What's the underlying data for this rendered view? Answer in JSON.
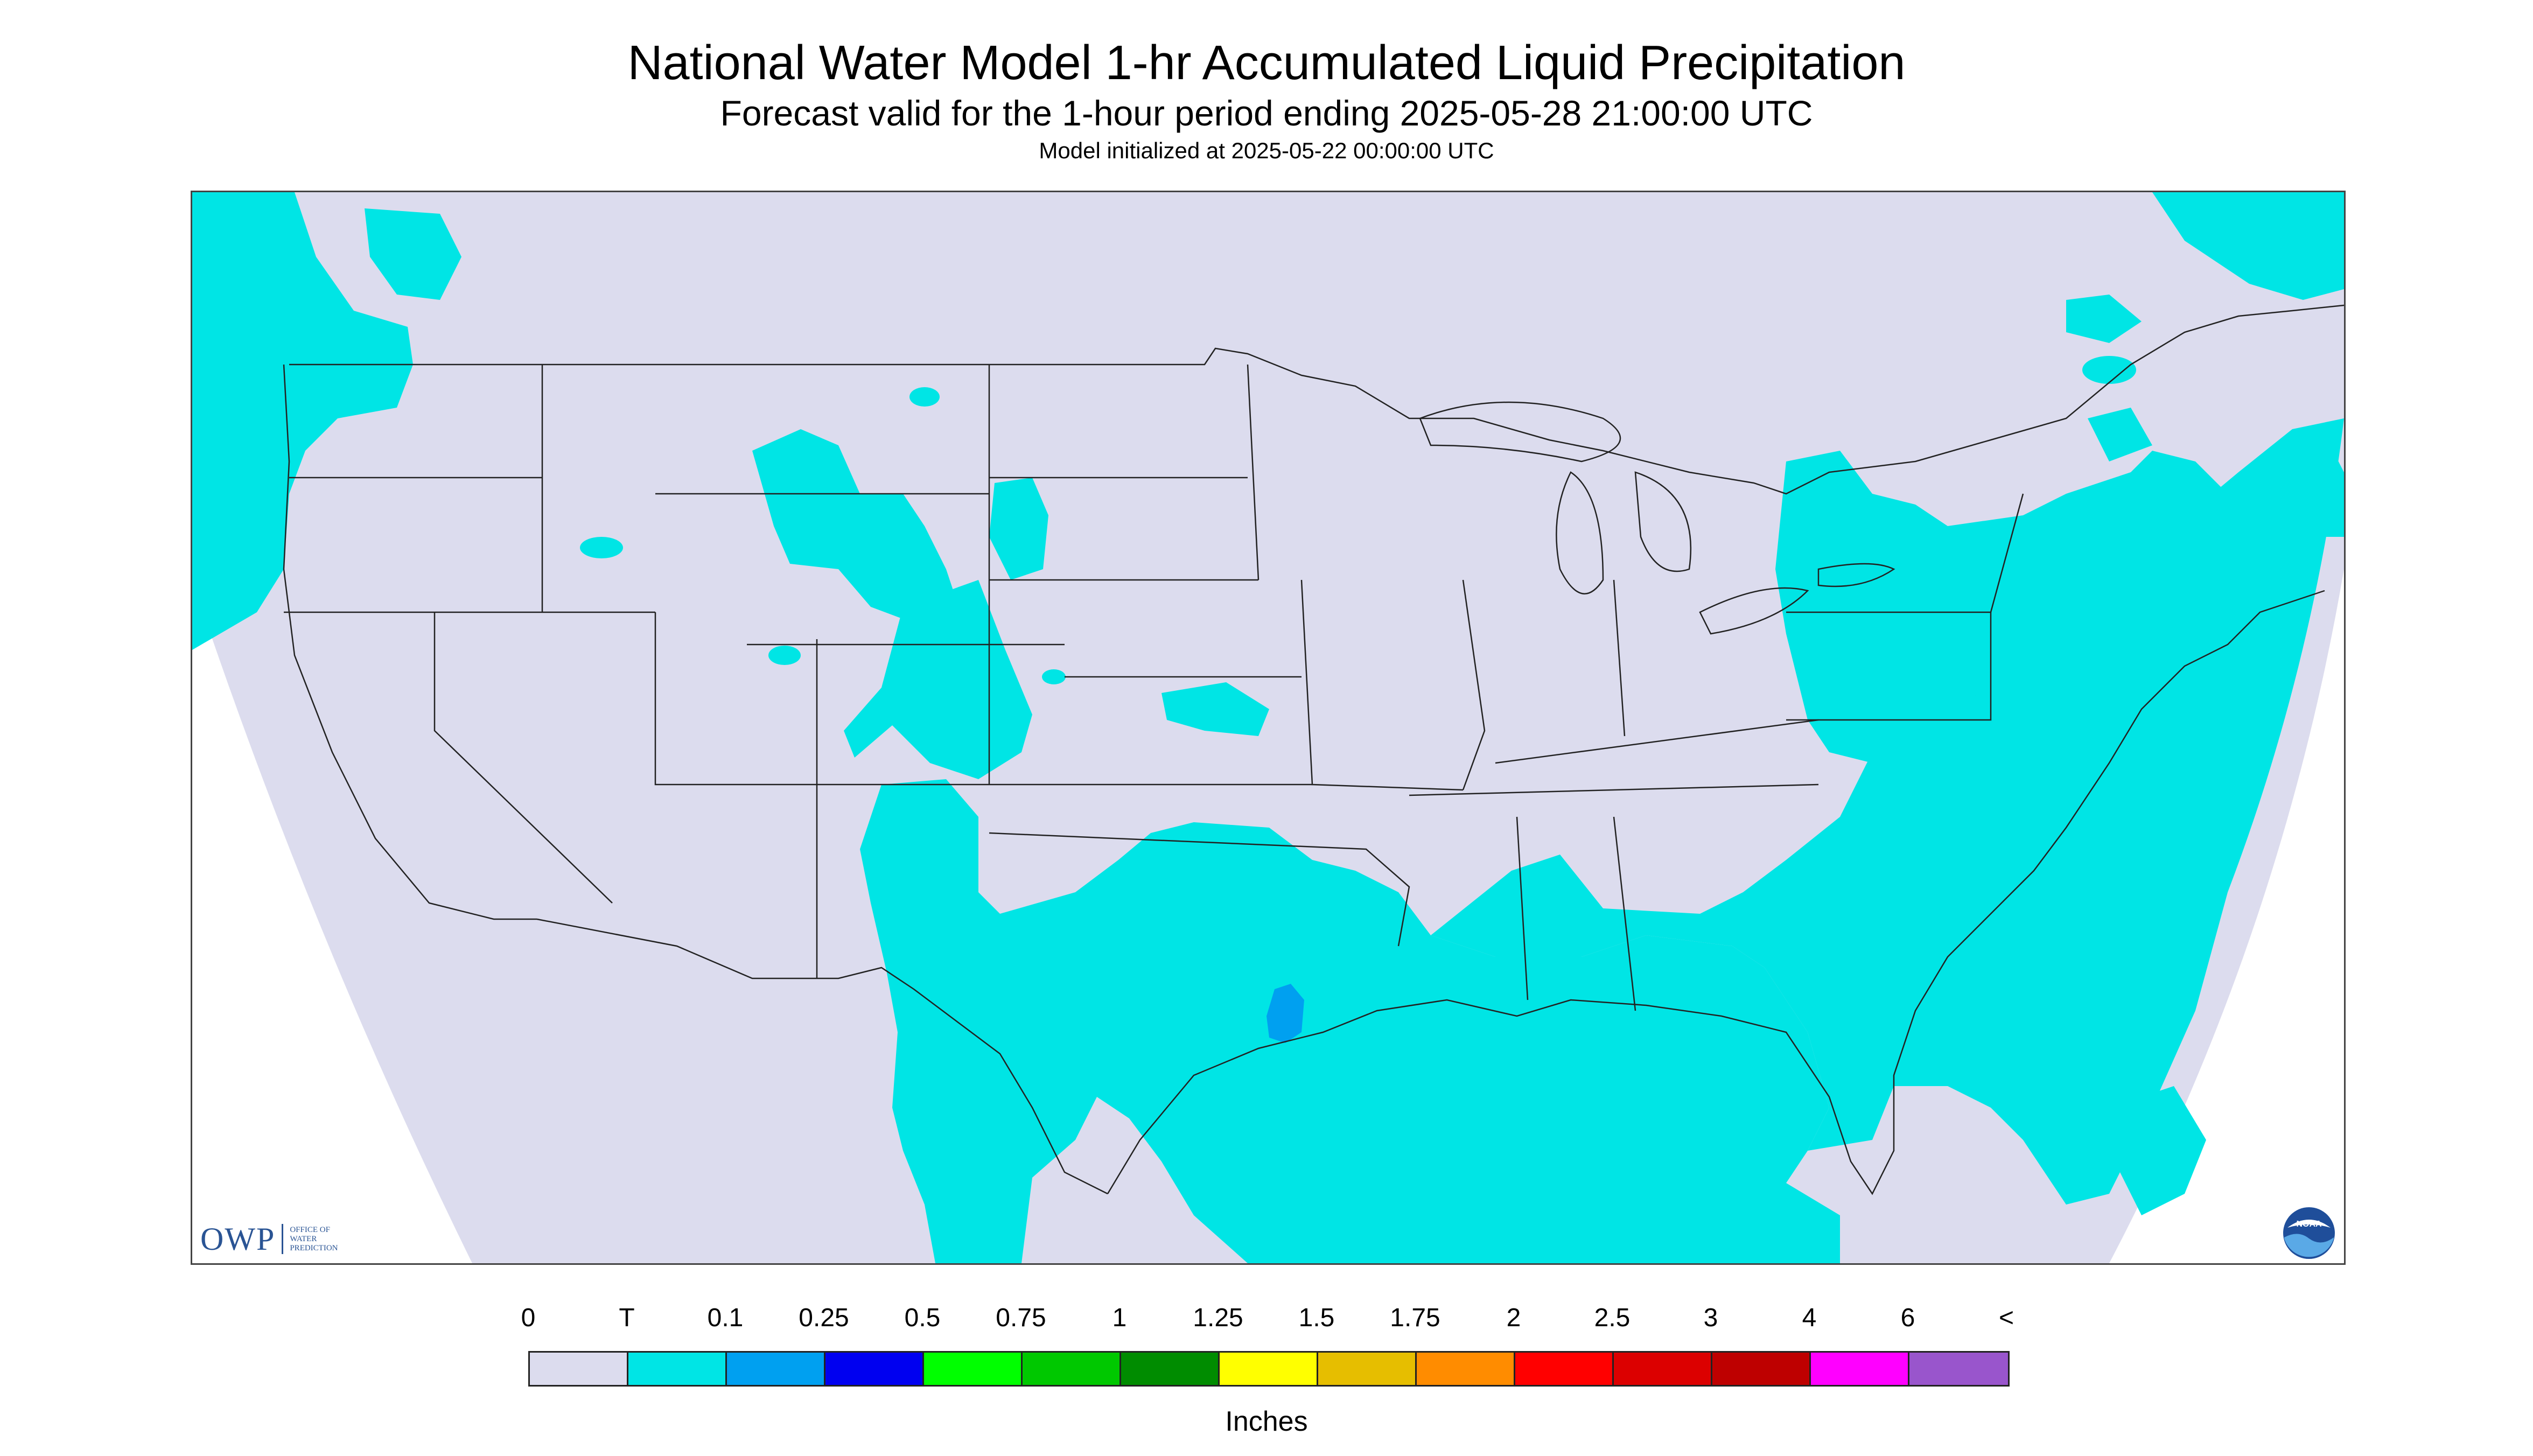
{
  "header": {
    "title": "National Water Model 1-hr Accumulated Liquid Precipitation",
    "subtitle": "Forecast valid for the 1-hour period ending 2025-05-28 21:00:00 UTC",
    "init": "Model initialized at 2025-05-22 00:00:00 UTC"
  },
  "map": {
    "background_color": "#dcdcee",
    "outside_color": "#ffffff",
    "trace_color": "#00e5e5",
    "light_color": "#00a0f0",
    "boundary_color": "#222222"
  },
  "logos": {
    "owp": {
      "letters": "OWP",
      "line1": "OFFICE OF",
      "line2": "WATER",
      "line3": "PREDICTION"
    },
    "noaa": {
      "text": "NOAA"
    }
  },
  "legend": {
    "labels": [
      "0",
      "T",
      "0.1",
      "0.25",
      "0.5",
      "0.75",
      "1",
      "1.25",
      "1.5",
      "1.75",
      "2",
      "2.5",
      "3",
      "4",
      "6",
      "<"
    ],
    "colors": [
      "#dcdcee",
      "#00e5e5",
      "#00a0f0",
      "#0000f0",
      "#00ff00",
      "#00c800",
      "#008c00",
      "#ffff00",
      "#e6be00",
      "#ff8c00",
      "#ff0000",
      "#dc0000",
      "#be0000",
      "#ff00ff",
      "#9955cc"
    ],
    "units": "Inches"
  }
}
